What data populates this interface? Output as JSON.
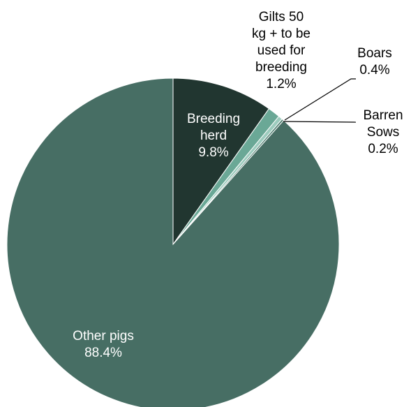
{
  "chart_data": {
    "type": "pie",
    "title": "",
    "slices": [
      {
        "label_lines": [
          "Breeding",
          "herd",
          "9.8%"
        ],
        "name": "Breeding herd",
        "value": 9.8,
        "color": "#213630"
      },
      {
        "label_lines": [
          "Gilts 50",
          "kg + to be",
          "used for",
          "breeding",
          "1.2%"
        ],
        "name": "Gilts 50 kg + to be used for breeding",
        "value": 1.2,
        "color": "#6aa896"
      },
      {
        "label_lines": [
          "Boars",
          "0.4%"
        ],
        "name": "Boars",
        "value": 0.4,
        "color": "#9ccbbd"
      },
      {
        "label_lines": [
          "Barren",
          "Sows",
          "0.2%"
        ],
        "name": "Barren Sows",
        "value": 0.2,
        "color": "#4f7f71"
      },
      {
        "label_lines": [
          "Other pigs",
          "88.4%"
        ],
        "name": "Other pigs",
        "value": 88.4,
        "color": "#476e64"
      }
    ]
  }
}
